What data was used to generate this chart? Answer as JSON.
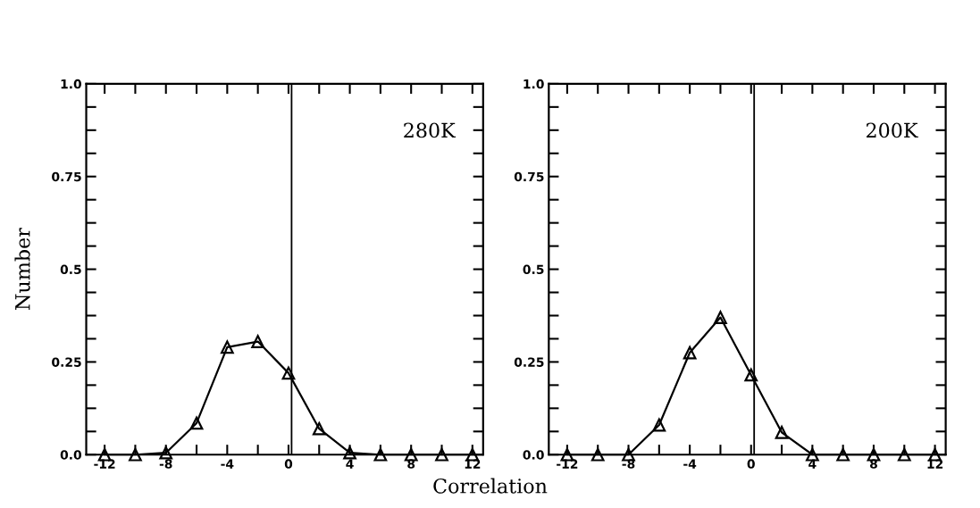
{
  "chart_data": [
    {
      "type": "line",
      "ylabel": "Number",
      "xlabel": "Correlation",
      "annotations": [
        "280K"
      ],
      "x": [
        -12,
        -10,
        -8,
        -6,
        -4,
        -2,
        0,
        2,
        4,
        6,
        8,
        10,
        12
      ],
      "series": [
        {
          "color": "#000000",
          "values": [
            0,
            0,
            0.005,
            0.085,
            0.29,
            0.305,
            0.22,
            0.07,
            0.005,
            0,
            0,
            0,
            0
          ]
        }
      ],
      "marker": "triangle",
      "line_style": "solid",
      "grid": false,
      "xlim": [
        -13.2,
        12.7
      ],
      "xticks": [
        -12,
        {
          "value": -10,
          "label": null
        },
        -8,
        {
          "value": -6,
          "label": null
        },
        -4,
        {
          "value": -2,
          "label": null
        },
        0,
        {
          "value": 2,
          "label": null
        },
        4,
        {
          "value": 6,
          "label": null
        },
        8,
        {
          "value": 10,
          "label": null
        },
        12
      ],
      "ylim": [
        0,
        1
      ],
      "yticks": [
        {
          "value": 0,
          "label": "0.0"
        },
        {
          "value": 0.0625,
          "label": null
        },
        {
          "value": 0.125,
          "label": null
        },
        {
          "value": 0.1875,
          "label": null
        },
        0.25,
        {
          "value": 0.3125,
          "label": null
        },
        {
          "value": 0.375,
          "label": null
        },
        {
          "value": 0.4375,
          "label": null
        },
        0.5,
        {
          "value": 0.5625,
          "label": null
        },
        {
          "value": 0.625,
          "label": null
        },
        {
          "value": 0.6875,
          "label": null
        },
        0.75,
        {
          "value": 0.8125,
          "label": null
        },
        {
          "value": 0.875,
          "label": null
        },
        {
          "value": 0.9375,
          "label": null
        },
        {
          "value": 1,
          "label": "1.0"
        }
      ],
      "ref_lines": [
        {
          "axis": "x",
          "value": 0.2,
          "color": "#000000"
        }
      ]
    },
    {
      "type": "line",
      "annotations": [
        "200K"
      ],
      "x": [
        -12,
        -10,
        -8,
        -6,
        -4,
        -2,
        0,
        2,
        4,
        6,
        8,
        10,
        12
      ],
      "series": [
        {
          "color": "#000000",
          "values": [
            0,
            0,
            0,
            0.08,
            0.275,
            0.37,
            0.215,
            0.06,
            0,
            0,
            0,
            0,
            0
          ]
        }
      ],
      "marker": "triangle",
      "line_style": "solid",
      "grid": false,
      "xlim": [
        -13.2,
        12.7
      ],
      "xticks": [
        -12,
        {
          "value": -10,
          "label": null
        },
        -8,
        {
          "value": -6,
          "label": null
        },
        -4,
        {
          "value": -2,
          "label": null
        },
        0,
        {
          "value": 2,
          "label": null
        },
        4,
        {
          "value": 6,
          "label": null
        },
        8,
        {
          "value": 10,
          "label": null
        },
        12
      ],
      "ylim": [
        0,
        1
      ],
      "yticks": [
        {
          "value": 0,
          "label": "0.0"
        },
        {
          "value": 0.0625,
          "label": null
        },
        {
          "value": 0.125,
          "label": null
        },
        {
          "value": 0.1875,
          "label": null
        },
        0.25,
        {
          "value": 0.3125,
          "label": null
        },
        {
          "value": 0.375,
          "label": null
        },
        {
          "value": 0.4375,
          "label": null
        },
        0.5,
        {
          "value": 0.5625,
          "label": null
        },
        {
          "value": 0.625,
          "label": null
        },
        {
          "value": 0.6875,
          "label": null
        },
        0.75,
        {
          "value": 0.8125,
          "label": null
        },
        {
          "value": 0.875,
          "label": null
        },
        {
          "value": 0.9375,
          "label": null
        },
        {
          "value": 1,
          "label": "1.0"
        }
      ],
      "ref_lines": [
        {
          "axis": "x",
          "value": 0.2,
          "color": "#000000"
        }
      ]
    }
  ]
}
